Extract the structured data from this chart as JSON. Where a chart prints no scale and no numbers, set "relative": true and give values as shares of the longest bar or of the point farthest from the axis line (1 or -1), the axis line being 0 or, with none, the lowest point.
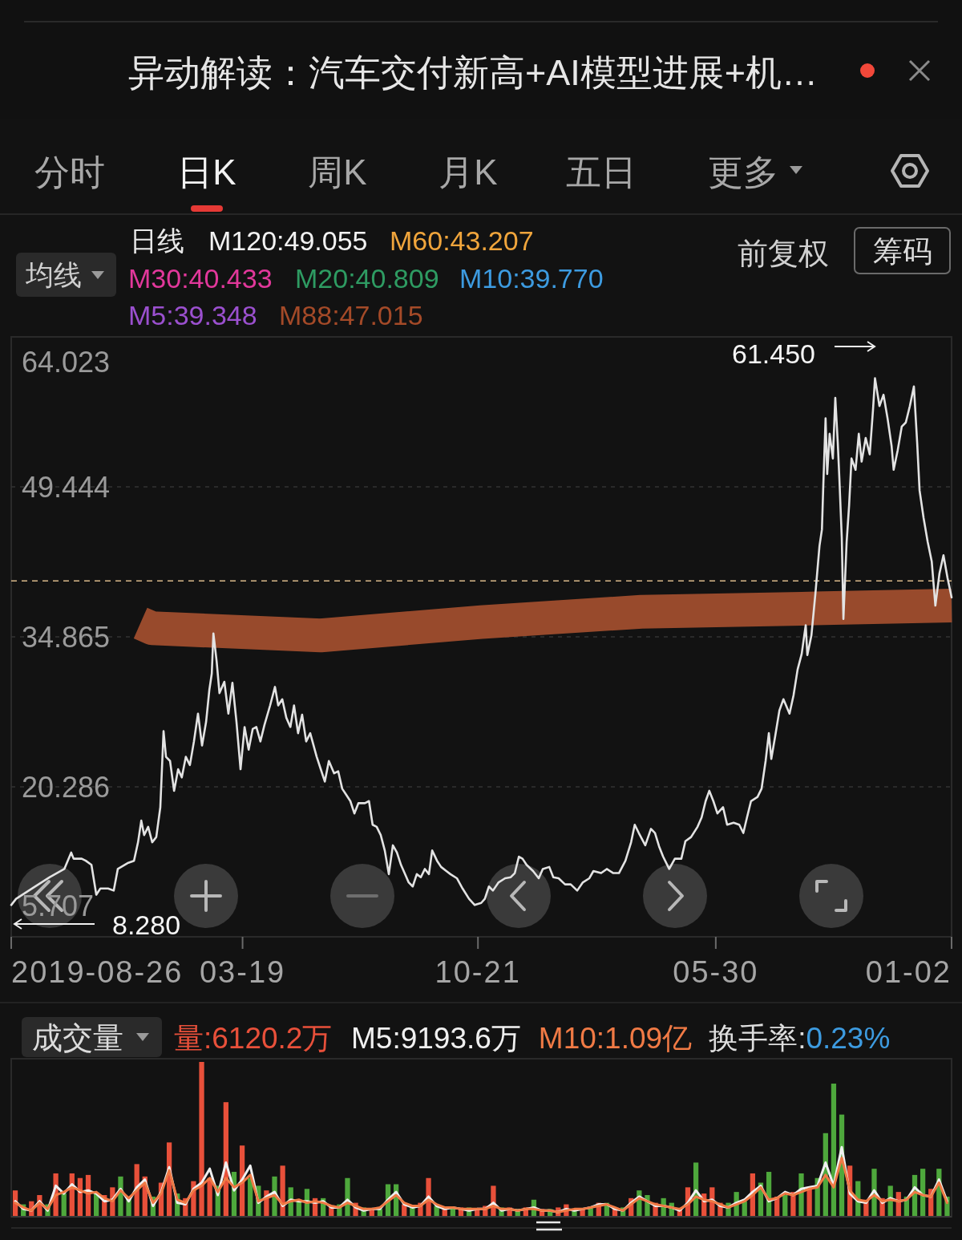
{
  "chart_data": [
    {
      "type": "other",
      "title": "异动解读：汽车交付新高+AI模型进展+机…",
      "annotations": [
        "分时",
        "日K",
        "周K",
        "月K",
        "五日",
        "更多"
      ]
    },
    {
      "type": "line",
      "annotations": [
        "均线",
        "日线",
        "M120:49.055",
        "M60:43.207",
        "M30:40.433",
        "M20:40.809",
        "M10:39.770",
        "M5:39.348",
        "M88:47.015",
        "前复权",
        "筹码",
        "61.450",
        "8.280"
      ],
      "x": [
        "2019-08-26",
        "2019-09-07",
        "2019-10-16",
        "2019-11-29",
        "2020-01-04",
        "2020-01-21",
        "2020-01-27",
        "2020-02-16",
        "2020-02-26",
        "2020-03-11",
        "2020-03-23",
        "2020-04-02",
        "2020-04-21",
        "2020-05-05",
        "2020-05-15",
        "2020-06-10",
        "2020-06-24",
        "2020-07-04",
        "2020-07-12",
        "2020-07-19",
        "2020-07-29",
        "2020-08-08",
        "2020-08-18",
        "2020-08-28",
        "2020-09-05",
        "2020-09-11",
        "2020-09-21",
        "2020-10-01",
        "2020-10-11",
        "2020-10-20",
        "2020-10-30",
        "2020-11-09",
        "2020-11-19",
        "2020-11-29",
        "2020-12-09",
        "2020-12-19",
        "2020-12-27",
        "2021-01-02",
        "2021-01-06",
        "2021-01-14",
        "2021-01-21",
        "2021-02-02",
        "2021-02-12",
        "2021-02-22",
        "2021-03-04",
        "2021-03-14",
        "2021-03-24",
        "2021-04-03",
        "2021-04-13",
        "2021-04-22",
        "2021-05-02",
        "2021-05-12",
        "2021-05-26",
        "2021-06-07",
        "2021-06-15",
        "2021-06-25",
        "2021-07-05",
        "2021-07-15",
        "2021-07-24",
        "2021-08-03",
        "2021-08-13",
        "2021-08-23",
        "2021-09-02",
        "2021-09-18",
        "2021-09-28",
        "2021-10-08",
        "2021-10-18",
        "2021-10-31",
        "2021-11-10",
        "2021-11-20",
        "2021-11-30",
        "2021-12-10",
        "2021-12-20",
        "2021-12-30",
        "2022-01-15",
        "2022-01-25",
        "2022-02-03",
        "2022-02-13",
        "2022-02-23",
        "2022-03-05",
        "2022-03-15",
        "2022-03-25",
        "2022-04-04",
        "2022-04-14",
        "2022-04-24",
        "2022-05-03",
        "2022-05-13",
        "2022-05-23",
        "2022-06-02",
        "2022-06-12",
        "2022-06-22",
        "2022-06-30",
        "2022-07-12",
        "2022-07-22",
        "2022-08-04",
        "2022-08-14",
        "2022-08-30",
        "2022-09-13",
        "2022-09-29",
        "2022-10-13",
        "2022-10-29",
        "2022-11-07",
        "2022-11-17",
        "2022-11-27",
        "2022-12-11",
        "2022-12-27",
        "2023-01-10",
        "2023-01-20",
        "2023-01-30",
        "2023-02-08",
        "2023-02-18",
        "2023-03-06",
        "2023-03-20",
        "2023-03-30",
        "2023-04-15",
        "2023-04-25",
        "2023-05-08",
        "2023-05-24",
        "2023-06-07",
        "2023-06-23",
        "2023-07-07",
        "2023-07-23",
        "2023-08-02",
        "2023-08-21",
        "2023-09-04",
        "2023-09-20",
        "2023-10-04",
        "2023-10-20",
        "2023-11-03",
        "2023-11-12",
        "2023-11-22",
        "2023-12-08",
        "2023-12-22",
        "2024-01-01",
        "2024-01-11",
        "2024-01-21",
        "2024-02-05",
        "2024-02-19",
        "2024-03-06",
        "2024-03-16",
        "2024-03-30",
        "2024-04-15",
        "2024-04-25",
        "2024-05-05",
        "2024-05-14",
        "2024-05-24",
        "2024-06-03",
        "2024-06-17",
        "2024-06-27",
        "2024-07-13",
        "2024-07-27",
        "2024-08-06",
        "2024-08-15",
        "2024-08-25",
        "2024-09-10",
        "2024-09-20",
        "2024-09-30",
        "2024-10-08",
        "2024-10-14",
        "2024-10-24",
        "2024-11-03",
        "2024-11-13",
        "2024-11-28",
        "2024-12-08",
        "2024-12-18",
        "2024-12-28",
        "2025-01-07",
        "2025-01-11",
        "2025-01-21",
        "2025-01-31",
        "2025-02-10",
        "2025-02-16",
        "2025-02-19",
        "2025-02-25",
        "2025-03-01",
        "2025-03-07",
        "2025-03-15",
        "2025-03-21",
        "2025-03-27",
        "2025-03-31",
        "2025-04-06",
        "2025-04-10",
        "2025-04-18",
        "2025-04-24",
        "2025-04-30",
        "2025-05-10",
        "2025-05-18",
        "2025-05-25",
        "2025-06-04",
        "2025-06-14",
        "2025-06-22",
        "2025-06-27",
        "2025-07-08",
        "2025-07-18",
        "2025-07-28",
        "2025-08-07",
        "2025-08-12",
        "2025-08-22",
        "2025-09-01",
        "2025-09-11",
        "2025-09-21",
        "2025-10-01",
        "2025-10-09",
        "2025-10-15",
        "2025-10-25",
        "2025-11-04",
        "2025-11-14",
        "2025-11-23",
        "2025-12-03",
        "2025-12-13",
        "2025-12-23",
        "2026-01-02"
      ],
      "series": [
        {
          "color": "#984a2c",
          "x": [
            "2020-07-10",
            "2020-08-08",
            "2021-09-28",
            "2022-10-29",
            "2023-11-28",
            "2024-12-28",
            "2026-01-02"
          ],
          "values": [
            36.2,
            35.7,
            35.0,
            36.3,
            37.3,
            37.6,
            37.9
          ]
        },
        {
          "color": "#e3e3e3",
          "values": [
            8.8,
            9.4,
            10.4,
            11.5,
            12.3,
            13.9,
            13.3,
            13.3,
            13.1,
            12.7,
            9.8,
            10.4,
            10.4,
            10.2,
            12.3,
            12.9,
            13.1,
            14.9,
            17.0,
            15.6,
            16.4,
            14.9,
            15.4,
            18.3,
            25.7,
            23.2,
            22.8,
            19.9,
            22.0,
            21.2,
            23.2,
            22.4,
            24.7,
            27.4,
            24.3,
            26.6,
            29.7,
            31.3,
            35.2,
            32.5,
            29.4,
            30.5,
            27.4,
            30.4,
            26.6,
            22.0,
            26.1,
            23.9,
            25.9,
            26.1,
            24.7,
            26.3,
            28.2,
            30.0,
            28.2,
            28.8,
            27.0,
            26.1,
            28.2,
            25.5,
            27.3,
            24.7,
            25.5,
            23.2,
            22.0,
            20.8,
            22.8,
            21.6,
            21.8,
            20.1,
            19.5,
            18.9,
            17.7,
            18.7,
            18.7,
            18.9,
            16.6,
            16.4,
            15.6,
            14.1,
            11.8,
            14.6,
            13.9,
            12.7,
            11.8,
            11.0,
            10.6,
            11.8,
            11.5,
            12.3,
            11.8,
            14.1,
            13.1,
            12.5,
            12.1,
            11.8,
            11.4,
            10.4,
            9.4,
            8.8,
            9.0,
            9.4,
            10.6,
            10.2,
            11.0,
            11.4,
            11.5,
            11.9,
            13.5,
            13.3,
            12.7,
            12.1,
            11.4,
            12.3,
            12.5,
            11.5,
            11.4,
            10.8,
            10.8,
            10.2,
            11.0,
            11.4,
            12.1,
            11.9,
            12.3,
            11.9,
            11.9,
            13.1,
            14.9,
            16.6,
            15.8,
            14.6,
            16.2,
            15.8,
            14.5,
            13.5,
            12.3,
            13.3,
            13.3,
            15.0,
            15.4,
            16.4,
            17.3,
            18.9,
            19.9,
            18.9,
            17.7,
            18.3,
            16.6,
            16.8,
            16.6,
            15.8,
            17.3,
            18.9,
            19.3,
            20.1,
            22.8,
            25.5,
            23.0,
            25.3,
            27.7,
            28.8,
            27.4,
            29.2,
            31.7,
            33.2,
            36.0,
            33.1,
            35.0,
            39.1,
            43.7,
            45.3,
            49.1,
            56.1,
            50.7,
            54.6,
            52.2,
            58.1,
            53.8,
            50.3,
            44.5,
            36.6,
            44.1,
            47.6,
            52.2,
            51.1,
            54.6,
            51.9,
            54.2,
            52.6,
            56.9,
            60.0,
            57.3,
            58.4,
            56.1,
            53.4,
            51.1,
            53.0,
            55.3,
            55.7,
            57.3,
            59.2,
            53.8,
            49.1,
            46.4,
            44.1,
            42.2,
            37.9,
            41.0,
            42.8,
            40.6,
            38.7
          ]
        }
      ],
      "xlim": [
        "2019-08-26",
        "2026-01-02"
      ],
      "xticks": [
        {
          "value": "2019-08-26",
          "label": "2019-08-26"
        },
        {
          "value": "2021-03-19",
          "label": "03-19"
        },
        {
          "value": "2022-10-21",
          "label": "10-21"
        },
        {
          "value": "2024-05-30",
          "label": "05-30"
        },
        {
          "value": "2026-01-02",
          "label": "01-02"
        }
      ],
      "ylim": [
        5.707,
        64.023
      ],
      "yticks": [
        64.023,
        49.444,
        34.865,
        20.286,
        5.707
      ],
      "grid": "y",
      "ref_lines": [
        {
          "axis": "y",
          "value": 40.3,
          "color": "#d9b98a",
          "line_style": "dashed"
        }
      ]
    },
    {
      "type": "bar",
      "relative": true,
      "tick_labels": false,
      "annotations": [
        "成交量",
        "量:6120.2万",
        "换手率:",
        "0.23%"
      ],
      "x": [
        "2019-09-05",
        "2019-09-25",
        "2019-10-15",
        "2019-11-04",
        "2019-11-24",
        "2019-12-14",
        "2020-01-03",
        "2020-01-23",
        "2020-02-12",
        "2020-03-03",
        "2020-03-23",
        "2020-04-12",
        "2020-05-02",
        "2020-05-22",
        "2020-06-11",
        "2020-07-01",
        "2020-07-21",
        "2020-08-10",
        "2020-08-30",
        "2020-09-19",
        "2020-10-09",
        "2020-10-29",
        "2020-11-18",
        "2020-12-08",
        "2020-12-28",
        "2021-01-17",
        "2021-02-06",
        "2021-02-26",
        "2021-03-18",
        "2021-04-07",
        "2021-04-27",
        "2021-05-17",
        "2021-06-06",
        "2021-06-26",
        "2021-07-16",
        "2021-08-05",
        "2021-08-25",
        "2021-09-14",
        "2021-10-04",
        "2021-10-24",
        "2021-11-13",
        "2021-12-03",
        "2021-12-23",
        "2022-01-12",
        "2022-02-01",
        "2022-02-21",
        "2022-03-13",
        "2022-04-02",
        "2022-04-22",
        "2022-05-12",
        "2022-06-01",
        "2022-06-21",
        "2022-07-11",
        "2022-07-31",
        "2022-08-20",
        "2022-09-09",
        "2022-09-29",
        "2022-10-19",
        "2022-11-08",
        "2022-11-28",
        "2022-12-18",
        "2023-01-07",
        "2023-01-27",
        "2023-02-16",
        "2023-03-08",
        "2023-03-28",
        "2023-04-17",
        "2023-05-07",
        "2023-05-27",
        "2023-06-16",
        "2023-07-06",
        "2023-07-26",
        "2023-08-15",
        "2023-09-04",
        "2023-09-24",
        "2023-10-14",
        "2023-11-03",
        "2023-11-23",
        "2023-12-13",
        "2024-01-02",
        "2024-01-22",
        "2024-02-11",
        "2024-03-02",
        "2024-03-22",
        "2024-04-11",
        "2024-05-01",
        "2024-05-21",
        "2024-06-10",
        "2024-06-30",
        "2024-07-20",
        "2024-08-09",
        "2024-08-29",
        "2024-09-18",
        "2024-10-08",
        "2024-10-28",
        "2024-11-17",
        "2024-12-07",
        "2024-12-27",
        "2025-01-16",
        "2025-02-05",
        "2025-02-25",
        "2025-03-17",
        "2025-04-06",
        "2025-04-26",
        "2025-05-16",
        "2025-06-05",
        "2025-06-25",
        "2025-07-15",
        "2025-08-04",
        "2025-08-24",
        "2025-09-13",
        "2025-10-03",
        "2025-10-23",
        "2025-11-12",
        "2025-12-02",
        "2025-12-22"
      ],
      "xlim": [
        "2019-08-26",
        "2026-01-02"
      ],
      "series": [
        {
          "values": [
            0.17,
            0.08,
            0.1,
            0.14,
            0.08,
            0.28,
            0.15,
            0.28,
            0.25,
            0.27,
            0.15,
            0.14,
            0.19,
            0.26,
            0.12,
            0.34,
            0.26,
            0.13,
            0.22,
            0.48,
            0.15,
            0.12,
            0.23,
            1.0,
            0.25,
            0.2,
            0.74,
            0.29,
            0.46,
            0.25,
            0.2,
            0.17,
            0.26,
            0.33,
            0.19,
            0.1,
            0.18,
            0.12,
            0.12,
            0.07,
            0.08,
            0.25,
            0.09,
            0.06,
            0.05,
            0.05,
            0.21,
            0.21,
            0.08,
            0.07,
            0.09,
            0.25,
            0.07,
            0.06,
            0.06,
            0.06,
            0.06,
            0.05,
            0.07,
            0.2,
            0.06,
            0.06,
            0.05,
            0.06,
            0.11,
            0.05,
            0.05,
            0.06,
            0.08,
            0.05,
            0.05,
            0.06,
            0.09,
            0.09,
            0.05,
            0.06,
            0.12,
            0.17,
            0.14,
            0.09,
            0.12,
            0.09,
            0.05,
            0.19,
            0.35,
            0.15,
            0.19,
            0.09,
            0.09,
            0.16,
            0.1,
            0.28,
            0.22,
            0.29,
            0.13,
            0.14,
            0.16,
            0.28,
            0.19,
            0.25,
            0.54,
            0.86,
            0.66,
            0.33,
            0.23,
            0.11,
            0.31,
            0.12,
            0.2,
            0.16,
            0.13,
            0.27,
            0.31,
            0.18,
            0.31,
            0.13
          ],
          "colors": [
            "#e8503a",
            "#4ea83c",
            "#e8503a",
            "#e8503a",
            "#4ea83c",
            "#e8503a",
            "#4ea83c",
            "#e8503a",
            "#e8503a",
            "#e8503a",
            "#4ea83c",
            "#e8503a",
            "#e8503a",
            "#4ea83c",
            "#4ea83c",
            "#e8503a",
            "#e8503a",
            "#4ea83c",
            "#e8503a",
            "#e8503a",
            "#4ea83c",
            "#e8503a",
            "#e8503a",
            "#e8503a",
            "#e8503a",
            "#4ea83c",
            "#e8503a",
            "#4ea83c",
            "#e8503a",
            "#4ea83c",
            "#4ea83c",
            "#e8503a",
            "#4ea83c",
            "#e8503a",
            "#4ea83c",
            "#4ea83c",
            "#4ea83c",
            "#e8503a",
            "#4ea83c",
            "#e8503a",
            "#4ea83c",
            "#4ea83c",
            "#e8503a",
            "#4ea83c",
            "#e8503a",
            "#4ea83c",
            "#4ea83c",
            "#4ea83c",
            "#e8503a",
            "#4ea83c",
            "#e8503a",
            "#e8503a",
            "#4ea83c",
            "#e8503a",
            "#4ea83c",
            "#e8503a",
            "#4ea83c",
            "#e8503a",
            "#e8503a",
            "#e8503a",
            "#4ea83c",
            "#e8503a",
            "#4ea83c",
            "#e8503a",
            "#4ea83c",
            "#e8503a",
            "#4ea83c",
            "#e8503a",
            "#e8503a",
            "#4ea83c",
            "#e8503a",
            "#4ea83c",
            "#e8503a",
            "#4ea83c",
            "#e8503a",
            "#4ea83c",
            "#e8503a",
            "#4ea83c",
            "#4ea83c",
            "#e8503a",
            "#4ea83c",
            "#4ea83c",
            "#e8503a",
            "#e8503a",
            "#4ea83c",
            "#e8503a",
            "#e8503a",
            "#e8503a",
            "#4ea83c",
            "#4ea83c",
            "#4ea83c",
            "#e8503a",
            "#4ea83c",
            "#4ea83c",
            "#e8503a",
            "#4ea83c",
            "#e8503a",
            "#4ea83c",
            "#e8503a",
            "#4ea83c",
            "#4ea83c",
            "#4ea83c",
            "#4ea83c",
            "#e8503a",
            "#4ea83c",
            "#e8503a",
            "#4ea83c",
            "#e8503a",
            "#4ea83c",
            "#e8503a",
            "#4ea83c",
            "#4ea83c",
            "#4ea83c",
            "#e8503a",
            "#4ea83c",
            "#4ea83c"
          ]
        },
        {
          "type": "line",
          "name": "M5:9193.6万",
          "color": "#f0f0f0",
          "values": [
            0.1,
            0.05,
            0.04,
            0.1,
            0.04,
            0.2,
            0.15,
            0.21,
            0.16,
            0.17,
            0.15,
            0.1,
            0.11,
            0.18,
            0.1,
            0.19,
            0.24,
            0.07,
            0.16,
            0.32,
            0.09,
            0.08,
            0.18,
            0.22,
            0.31,
            0.14,
            0.35,
            0.17,
            0.24,
            0.33,
            0.09,
            0.13,
            0.16,
            0.07,
            0.11,
            0.1,
            0.1,
            0.09,
            0.1,
            0.06,
            0.06,
            0.11,
            0.06,
            0.04,
            0.05,
            0.05,
            0.11,
            0.16,
            0.08,
            0.06,
            0.07,
            0.13,
            0.07,
            0.05,
            0.06,
            0.05,
            0.04,
            0.05,
            0.05,
            0.09,
            0.04,
            0.05,
            0.04,
            0.05,
            0.06,
            0.04,
            0.04,
            0.03,
            0.05,
            0.04,
            0.05,
            0.06,
            0.08,
            0.08,
            0.05,
            0.04,
            0.09,
            0.13,
            0.1,
            0.07,
            0.07,
            0.06,
            0.04,
            0.09,
            0.17,
            0.1,
            0.11,
            0.07,
            0.06,
            0.09,
            0.11,
            0.16,
            0.2,
            0.1,
            0.12,
            0.16,
            0.14,
            0.18,
            0.19,
            0.2,
            0.35,
            0.2,
            0.45,
            0.15,
            0.1,
            0.09,
            0.17,
            0.09,
            0.12,
            0.1,
            0.11,
            0.19,
            0.14,
            0.13,
            0.24,
            0.1
          ]
        },
        {
          "type": "line",
          "name": "M10:1.09亿",
          "color": "#f07a45",
          "values": [
            0.09,
            0.06,
            0.04,
            0.09,
            0.05,
            0.14,
            0.16,
            0.19,
            0.17,
            0.15,
            0.16,
            0.12,
            0.1,
            0.17,
            0.12,
            0.17,
            0.22,
            0.09,
            0.15,
            0.3,
            0.11,
            0.09,
            0.17,
            0.2,
            0.25,
            0.16,
            0.25,
            0.19,
            0.22,
            0.27,
            0.1,
            0.12,
            0.14,
            0.08,
            0.1,
            0.11,
            0.09,
            0.1,
            0.09,
            0.07,
            0.06,
            0.09,
            0.07,
            0.05,
            0.05,
            0.06,
            0.1,
            0.14,
            0.09,
            0.07,
            0.07,
            0.11,
            0.08,
            0.06,
            0.06,
            0.05,
            0.05,
            0.05,
            0.05,
            0.07,
            0.05,
            0.05,
            0.04,
            0.05,
            0.05,
            0.04,
            0.04,
            0.03,
            0.04,
            0.05,
            0.05,
            0.06,
            0.07,
            0.08,
            0.06,
            0.04,
            0.08,
            0.12,
            0.1,
            0.08,
            0.07,
            0.06,
            0.05,
            0.08,
            0.13,
            0.11,
            0.1,
            0.08,
            0.06,
            0.08,
            0.1,
            0.14,
            0.19,
            0.11,
            0.12,
            0.15,
            0.14,
            0.16,
            0.18,
            0.19,
            0.27,
            0.19,
            0.38,
            0.17,
            0.11,
            0.1,
            0.14,
            0.1,
            0.11,
            0.1,
            0.11,
            0.16,
            0.14,
            0.13,
            0.22,
            0.09
          ]
        }
      ]
    }
  ]
}
